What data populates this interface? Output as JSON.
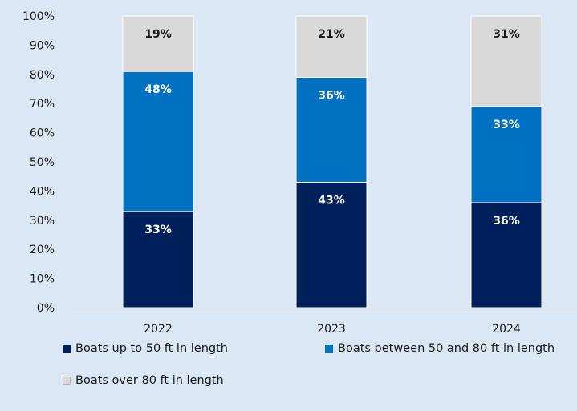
{
  "chart_data": {
    "type": "bar",
    "stacked": true,
    "title": "",
    "xlabel": "",
    "ylabel": "",
    "ylim": [
      0,
      100
    ],
    "y_ticks": [
      "0%",
      "10%",
      "20%",
      "30%",
      "40%",
      "50%",
      "60%",
      "70%",
      "80%",
      "90%",
      "100%"
    ],
    "grid": false,
    "legend_position": "bottom",
    "categories": [
      "2022",
      "2023",
      "2024"
    ],
    "series": [
      {
        "name": "Boats up to 50 ft in length",
        "color": "#00205b",
        "label_color": "#ffffff",
        "values": [
          33,
          43,
          36
        ],
        "labels": [
          "33%",
          "43%",
          "36%"
        ]
      },
      {
        "name": "Boats between 50 and 80 ft in length",
        "color": "#0070c0",
        "label_color": "#ffffff",
        "values": [
          48,
          36,
          33
        ],
        "labels": [
          "48%",
          "36%",
          "33%"
        ]
      },
      {
        "name": "Boats over 80 ft in length",
        "color": "#d9d9d9",
        "label_color": "#1a1a1a",
        "values": [
          19,
          21,
          31
        ],
        "labels": [
          "19%",
          "21%",
          "31%"
        ]
      }
    ]
  }
}
